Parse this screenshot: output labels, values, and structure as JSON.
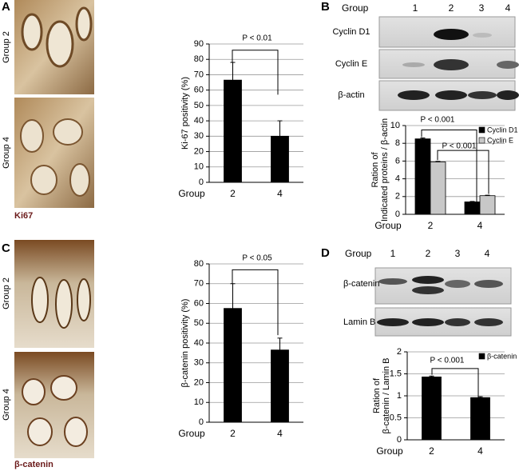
{
  "panel_a": {
    "letter": "A",
    "images": [
      "Group 2",
      "Group 4"
    ],
    "stain": "Ki67"
  },
  "panel_b": {
    "letter": "B",
    "blot": {
      "header": "Group",
      "lanes": [
        "1",
        "2",
        "3",
        "4"
      ],
      "rows": [
        "Cyclin D1",
        "Cyclin E",
        "β-actin"
      ]
    }
  },
  "panel_c": {
    "letter": "C",
    "images": [
      "Group 2",
      "Group 4"
    ],
    "stain": "β-catenin"
  },
  "panel_d": {
    "letter": "D",
    "blot": {
      "header": "Group",
      "lanes": [
        "1",
        "2",
        "3",
        "4"
      ],
      "rows": [
        "β-catenin",
        "Lamin B"
      ]
    }
  },
  "chart_data": [
    {
      "type": "bar",
      "xlabel": "Group",
      "ylabel": [
        "Ki-67 positivity (%)"
      ],
      "categories": [
        "2",
        "4"
      ],
      "values": [
        66.5,
        30
      ],
      "errors": [
        11.5,
        10
      ],
      "color": "#000000",
      "ylim": [
        0,
        90
      ],
      "yticks": [
        0,
        10,
        20,
        30,
        40,
        50,
        60,
        70,
        80,
        90
      ],
      "grid": true,
      "annotations": [
        "P < 0.01"
      ]
    },
    {
      "type": "bar",
      "xlabel": "Group",
      "ylabel": [
        "Ration of",
        "Indicated proteins / β-actin"
      ],
      "categories": [
        "2",
        "4"
      ],
      "series": [
        {
          "name": "Cyclin D1",
          "color": "#000000",
          "values": [
            8.5,
            1.4
          ],
          "errors": [
            0.1,
            0.05
          ]
        },
        {
          "name": "Cyclin E",
          "color": "#c8c8c8",
          "values": [
            5.9,
            2.1
          ],
          "errors": [
            0.05,
            0.05
          ]
        }
      ],
      "ylim": [
        0,
        10
      ],
      "yticks": [
        0,
        2,
        4,
        6,
        8,
        10
      ],
      "grid": true,
      "legend": "upper right",
      "annotations": [
        "P < 0.001",
        "P < 0.001"
      ]
    },
    {
      "type": "bar",
      "xlabel": "Group",
      "ylabel": [
        "β-catenin positivity (%)"
      ],
      "categories": [
        "2",
        "4"
      ],
      "values": [
        57.5,
        36.5
      ],
      "errors": [
        12.5,
        6
      ],
      "color": "#000000",
      "ylim": [
        0,
        80
      ],
      "yticks": [
        0,
        10,
        20,
        30,
        40,
        50,
        60,
        70,
        80
      ],
      "grid": true,
      "annotations": [
        "P < 0.05"
      ]
    },
    {
      "type": "bar",
      "xlabel": "Group",
      "ylabel": [
        "Ration of",
        "β-catenin / Lamin B"
      ],
      "categories": [
        "2",
        "4"
      ],
      "series": [
        {
          "name": "β-catenin",
          "color": "#000000",
          "values": [
            1.43,
            0.96
          ],
          "errors": [
            0.02,
            0.02
          ]
        }
      ],
      "ylim": [
        0,
        2
      ],
      "yticks": [
        0,
        0.5,
        1,
        1.5,
        2
      ],
      "grid": true,
      "legend": "upper right",
      "annotations": [
        "P < 0.001"
      ]
    }
  ]
}
